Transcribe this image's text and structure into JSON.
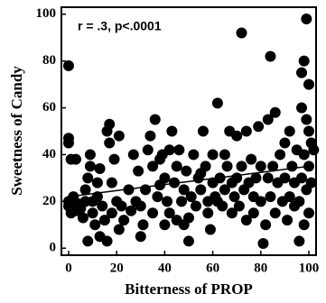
{
  "chart_data": {
    "type": "scatter",
    "annotation": "r = .3, p<.0001",
    "x_label": "Bitterness of PROP",
    "y_label": "Sweetness of Candy",
    "xlim": [
      -3,
      103
    ],
    "ylim": [
      -3,
      103
    ],
    "xticks": [
      0,
      20,
      40,
      60,
      80,
      100
    ],
    "yticks": [
      0,
      20,
      40,
      60,
      80,
      100
    ],
    "color": "#000000",
    "x": [
      0,
      0,
      0,
      1,
      3,
      0,
      0,
      1,
      2,
      3,
      4,
      5,
      6,
      7,
      7,
      8,
      8,
      9,
      9,
      10,
      10,
      11,
      12,
      12,
      13,
      13,
      14,
      15,
      16,
      16,
      17,
      17,
      18,
      18,
      19,
      20,
      21,
      21,
      22,
      23,
      25,
      26,
      27,
      28,
      29,
      30,
      30,
      31,
      32,
      33,
      34,
      35,
      35,
      36,
      37,
      38,
      38,
      39,
      40,
      40,
      41,
      42,
      42,
      43,
      44,
      45,
      45,
      46,
      47,
      48,
      48,
      49,
      50,
      50,
      51,
      52,
      53,
      54,
      55,
      55,
      56,
      57,
      58,
      58,
      59,
      60,
      60,
      61,
      62,
      62,
      63,
      64,
      65,
      65,
      66,
      67,
      68,
      68,
      69,
      70,
      70,
      71,
      72,
      72,
      73,
      74,
      74,
      75,
      76,
      77,
      77,
      78,
      79,
      80,
      80,
      81,
      82,
      83,
      83,
      84,
      84,
      85,
      86,
      86,
      87,
      88,
      89,
      90,
      90,
      91,
      92,
      92,
      93,
      94,
      94,
      95,
      96,
      96,
      97,
      97,
      97,
      98,
      98,
      98,
      99,
      99,
      99,
      100,
      100,
      100,
      100,
      101,
      102,
      101
    ],
    "values": [
      78,
      47,
      45,
      38,
      38,
      20,
      18,
      15,
      22,
      16,
      19,
      17,
      13,
      20,
      25,
      3,
      30,
      35,
      40,
      20,
      15,
      10,
      22,
      28,
      5,
      34,
      18,
      12,
      3,
      50,
      53,
      45,
      28,
      15,
      38,
      20,
      8,
      48,
      18,
      12,
      25,
      16,
      40,
      20,
      33,
      18,
      5,
      10,
      25,
      42,
      48,
      15,
      35,
      55,
      22,
      27,
      38,
      40,
      10,
      30,
      20,
      42,
      15,
      50,
      28,
      12,
      35,
      42,
      20,
      25,
      10,
      33,
      13,
      3,
      22,
      40,
      18,
      30,
      32,
      25,
      50,
      35,
      20,
      15,
      8,
      40,
      28,
      22,
      20,
      62,
      30,
      18,
      25,
      40,
      35,
      50,
      28,
      15,
      22,
      30,
      48,
      18,
      92,
      35,
      25,
      50,
      12,
      28,
      38,
      22,
      15,
      30,
      52,
      20,
      35,
      2,
      10,
      55,
      30,
      82,
      22,
      35,
      15,
      58,
      28,
      40,
      20,
      30,
      45,
      12,
      22,
      50,
      35,
      18,
      28,
      42,
      3,
      20,
      60,
      75,
      30,
      80,
      10,
      40,
      98,
      55,
      25,
      70,
      15,
      35,
      50,
      45,
      42,
      28
    ],
    "trendline": {
      "x": [
        0,
        100
      ],
      "y": [
        22,
        35
      ]
    }
  }
}
